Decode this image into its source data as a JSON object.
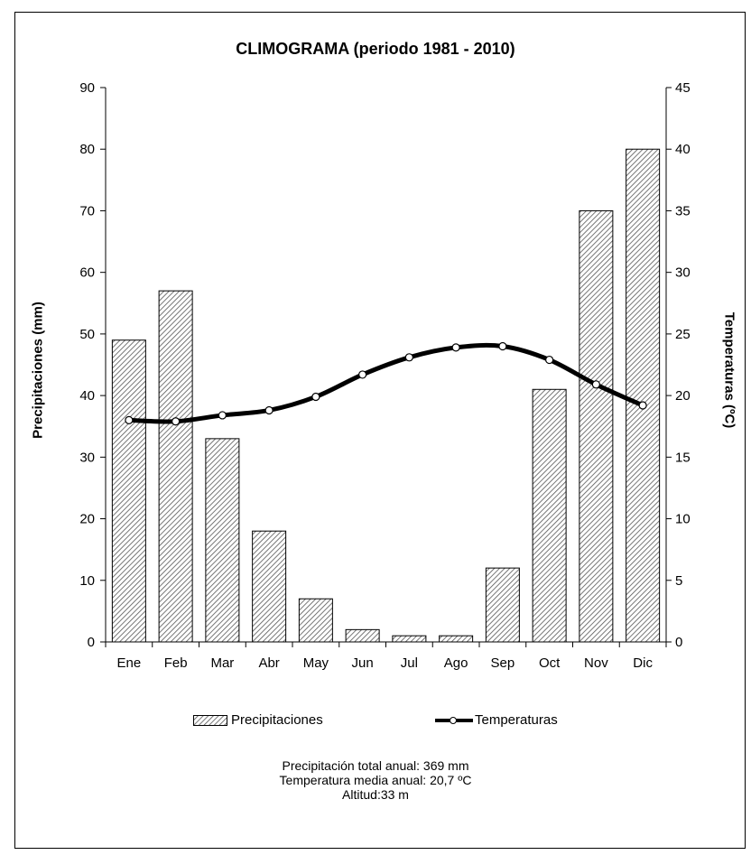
{
  "chart_data": {
    "type": "bar",
    "title": "CLIMOGRAMA (periodo 1981 - 2010)",
    "ylabel": "Precipitaciones (mm)",
    "y2label": "Temperaturas (ºC)",
    "ylim": [
      0,
      90
    ],
    "y2lim": [
      0,
      45
    ],
    "yticks": [
      0,
      10,
      20,
      30,
      40,
      50,
      60,
      70,
      80,
      90
    ],
    "y2ticks": [
      0,
      5,
      10,
      15,
      20,
      25,
      30,
      35,
      40,
      45
    ],
    "categories": [
      "Ene",
      "Feb",
      "Mar",
      "Abr",
      "May",
      "Jun",
      "Jul",
      "Ago",
      "Sep",
      "Oct",
      "Nov",
      "Dic"
    ],
    "series": [
      {
        "name": "Precipitaciones",
        "type": "bar",
        "axis": "left",
        "values": [
          49,
          57,
          33,
          18,
          7,
          2,
          1,
          1,
          12,
          41,
          70,
          80
        ]
      },
      {
        "name": "Temperaturas",
        "type": "line",
        "axis": "right",
        "values": [
          18.0,
          17.9,
          18.4,
          18.8,
          19.9,
          21.7,
          23.1,
          23.9,
          24.0,
          22.9,
          20.9,
          19.2
        ]
      }
    ],
    "legend_position": "bottom",
    "grid": false
  },
  "footnotes": {
    "precip_total": "Precipitación total anual: 369 mm",
    "temp_media": "Temperatura  media anual: 20,7 ºC",
    "altitud": "Altitud:33 m"
  },
  "colors": {
    "bar_fill_pattern": "#555555",
    "line": "#000000",
    "axis": "#000000"
  }
}
